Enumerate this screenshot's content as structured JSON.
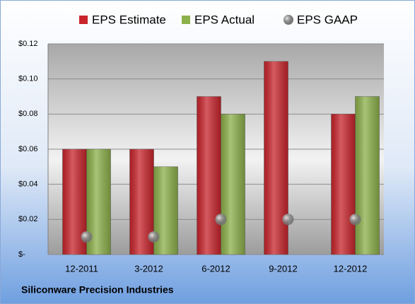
{
  "chart_data": {
    "type": "bar",
    "categories": [
      "12-2011",
      "3-2012",
      "6-2012",
      "9-2012",
      "12-2012"
    ],
    "series": [
      {
        "name": "EPS Estimate",
        "color": "#c8252c",
        "type": "bar",
        "values": [
          0.06,
          0.06,
          0.09,
          0.11,
          0.08
        ]
      },
      {
        "name": "EPS Actual",
        "color": "#8cb04a",
        "type": "bar",
        "values": [
          0.06,
          0.05,
          0.08,
          null,
          0.09
        ]
      },
      {
        "name": "EPS GAAP",
        "color": "#9a9a9a",
        "type": "scatter",
        "values": [
          0.01,
          0.01,
          0.02,
          0.02,
          0.02
        ]
      }
    ],
    "ylim": [
      0,
      0.12
    ],
    "yticks": [
      {
        "value": 0,
        "label": "$-"
      },
      {
        "value": 0.02,
        "label": "$0.02"
      },
      {
        "value": 0.04,
        "label": "$0.04"
      },
      {
        "value": 0.06,
        "label": "$0.06"
      },
      {
        "value": 0.08,
        "label": "$0.08"
      },
      {
        "value": 0.1,
        "label": "$0.10"
      },
      {
        "value": 0.12,
        "label": "$0.12"
      }
    ],
    "grid": true,
    "legend": "top",
    "footer": "Siliconware Precision Industries"
  }
}
